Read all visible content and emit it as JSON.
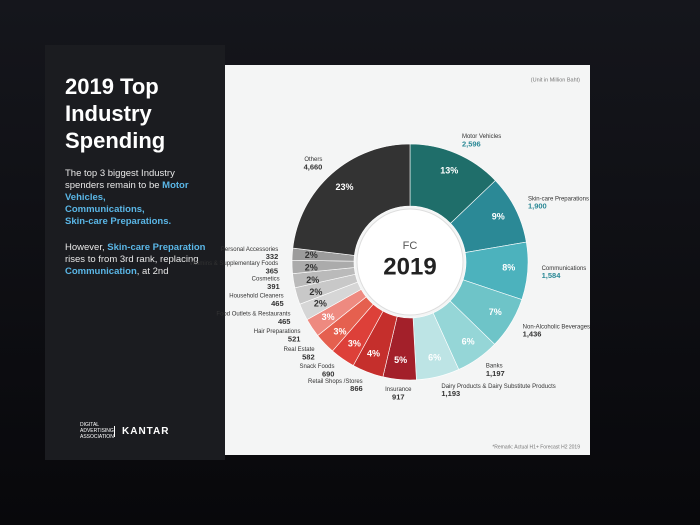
{
  "chart_data": {
    "type": "donut",
    "title": "2019 Top Industry Spending",
    "summary": {
      "text": "The top 3 biggest Industry spenders remain to be",
      "highlights": [
        "Motor Vehicles,",
        "Communications,",
        "Skin-care Preparations."
      ]
    },
    "note_parts": [
      "However,",
      "Skin-care Preparation",
      "rises to from 3rd rank, replacing",
      "Communication",
      ", at 2nd"
    ],
    "center_top": "FC",
    "center_year": "2019",
    "unit_note": "(Unit in Million Baht)",
    "remark": "*Remark: Actual H1+ Forecast H2 2019",
    "logos": [
      "DIGITAL ADVERTISING ASSOCIATION",
      "KANTAR"
    ],
    "categories": [
      "Motor Vehicles",
      "Skin-care Preparations",
      "Communications",
      "Non-Alcoholic Beverages",
      "Banks",
      "Dairy Products & Dairy Substitute Products",
      "Insurance",
      "Retail Shops /Stores",
      "Snack Foods",
      "Real Estate",
      "Hair Preparations",
      "Food Outlets & Restaurants",
      "Household Cleaners",
      "Cosmetics",
      "Vitamins & Supplementary Foods",
      "Personal Accessories",
      "Others"
    ],
    "values": [
      2596,
      1900,
      1584,
      1436,
      1197,
      1193,
      917,
      866,
      690,
      582,
      521,
      465,
      465,
      391,
      365,
      332,
      4660
    ],
    "value_labels": [
      "2,596",
      "1,900",
      "1,584",
      "1,436",
      "1,197",
      "1,193",
      "917",
      "866",
      "690",
      "582",
      "521",
      "465",
      "465",
      "391",
      "365",
      "332",
      "4,660"
    ],
    "shares": [
      13,
      9,
      8,
      7,
      6,
      6,
      5,
      4,
      3,
      3,
      3,
      2,
      2,
      2,
      2,
      2,
      23
    ],
    "share_labels": [
      "13%",
      "9%",
      "8%",
      "7%",
      "6%",
      "6%",
      "5%",
      "4%",
      "3%",
      "3%",
      "3%",
      "2%",
      "2%",
      "2%",
      "2%",
      "2%",
      "23%"
    ],
    "colors": [
      "#1f6e6a",
      "#2b8996",
      "#4cb2bd",
      "#6ec4c8",
      "#95d6d7",
      "#bde4e5",
      "#a3202a",
      "#c52f2c",
      "#dd4039",
      "#e5604f",
      "#ee8a80",
      "#d6d6d6",
      "#c8c8c8",
      "#bababa",
      "#ababab",
      "#9c9c9c",
      "#333333"
    ]
  }
}
